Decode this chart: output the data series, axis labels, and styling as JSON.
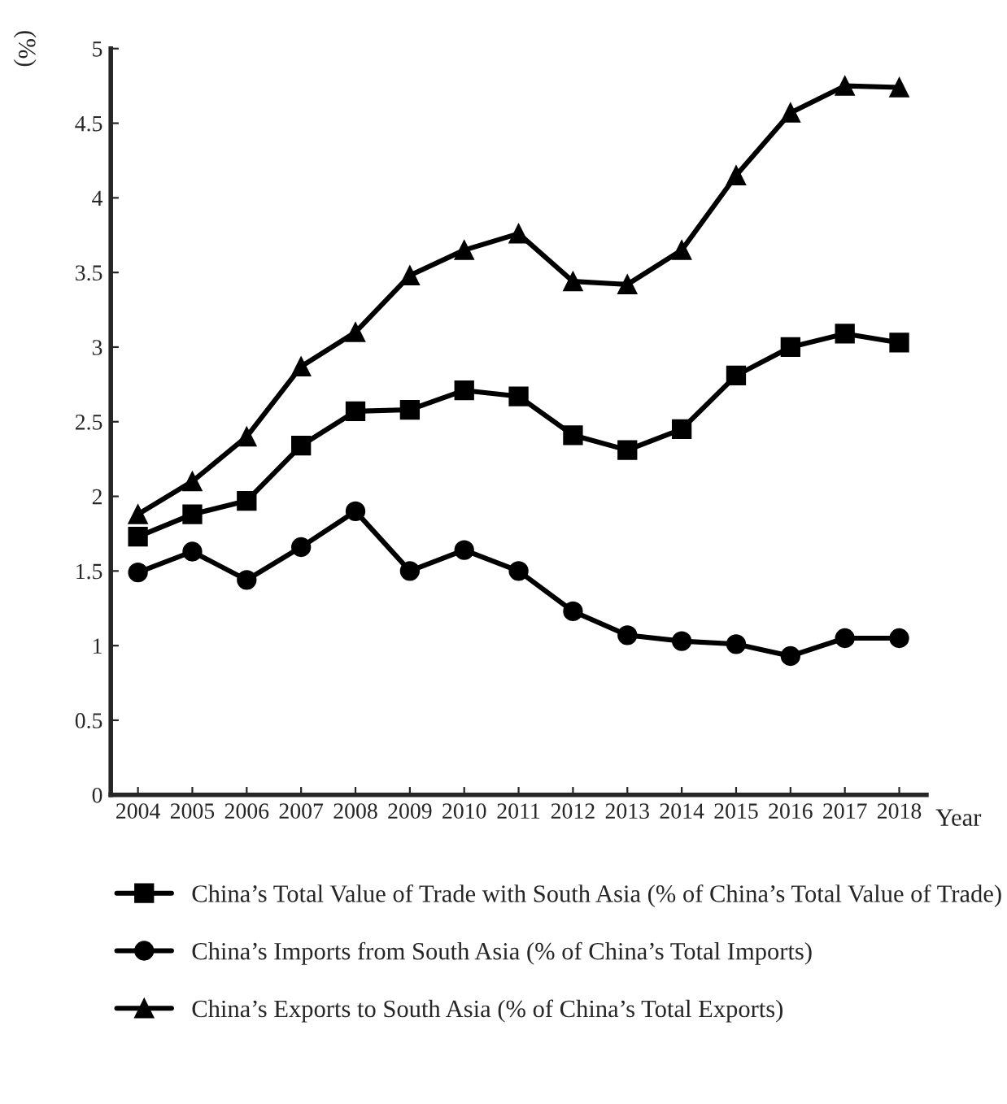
{
  "chart_data": {
    "type": "line",
    "xlabel": "Year",
    "ylabel": "(%)",
    "categories": [
      "2004",
      "2005",
      "2006",
      "2007",
      "2008",
      "2009",
      "2010",
      "2011",
      "2012",
      "2013",
      "2014",
      "2015",
      "2016",
      "2017",
      "2018"
    ],
    "series": [
      {
        "name": "China’s Total Value of Trade with South Asia (% of China’s Total Value of Trade)",
        "color": "#000000",
        "marker": "square",
        "values": [
          1.73,
          1.88,
          1.97,
          2.34,
          2.57,
          2.58,
          2.71,
          2.67,
          2.41,
          2.31,
          2.45,
          2.81,
          3.0,
          3.09,
          3.03
        ]
      },
      {
        "name": "China’s Imports from South Asia (% of China’s Total Imports)",
        "color": "#000000",
        "marker": "circle",
        "values": [
          1.49,
          1.63,
          1.44,
          1.66,
          1.9,
          1.5,
          1.64,
          1.5,
          1.23,
          1.07,
          1.03,
          1.01,
          0.93,
          1.05,
          1.05
        ]
      },
      {
        "name": "China’s Exports to South Asia (% of China’s Total Exports)",
        "color": "#000000",
        "marker": "triangle",
        "values": [
          1.88,
          2.1,
          2.4,
          2.87,
          3.1,
          3.48,
          3.65,
          3.76,
          3.44,
          3.42,
          3.65,
          4.15,
          4.57,
          4.75,
          4.74
        ]
      }
    ],
    "ylim": [
      0,
      5
    ],
    "yticks": [
      0,
      0.5,
      1,
      1.5,
      2,
      2.5,
      3,
      3.5,
      4,
      4.5,
      5
    ],
    "grid": false,
    "legend": "bottom",
    "line_style": "solid"
  }
}
